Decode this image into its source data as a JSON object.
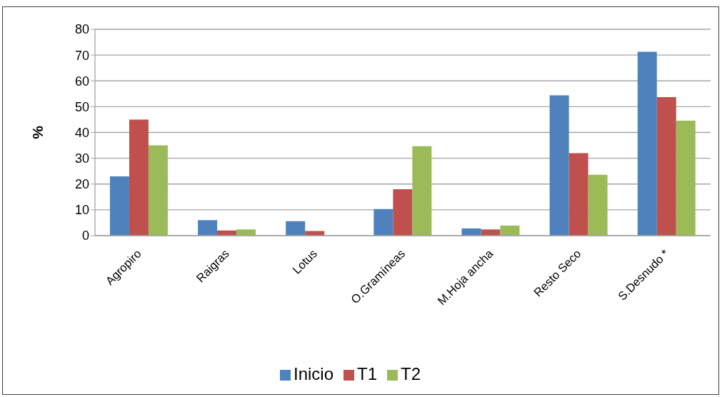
{
  "chart_data": {
    "type": "bar",
    "ylabel": "%",
    "categories": [
      "Agropiro",
      "Raigras",
      "Lotus",
      "O.Gramíneas",
      "M.Hoja ancha",
      "Resto Seco",
      "S.Desnudo *"
    ],
    "series": [
      {
        "name": "Inicio",
        "color": "#4f81bd",
        "values": [
          23,
          6,
          5.6,
          10.3,
          2.8,
          54.4,
          71.3
        ]
      },
      {
        "name": "T1",
        "color": "#c0504d",
        "values": [
          45,
          2,
          1.8,
          18,
          2.4,
          32,
          53.7
        ]
      },
      {
        "name": "T2",
        "color": "#9bbb59",
        "values": [
          35,
          2.4,
          0,
          34.7,
          3.9,
          23.6,
          44.6
        ]
      }
    ],
    "ylim": [
      0,
      80
    ],
    "yticks": [
      0,
      10,
      20,
      30,
      40,
      50,
      60,
      70,
      80
    ],
    "grid": "y",
    "legend": "bottom"
  }
}
